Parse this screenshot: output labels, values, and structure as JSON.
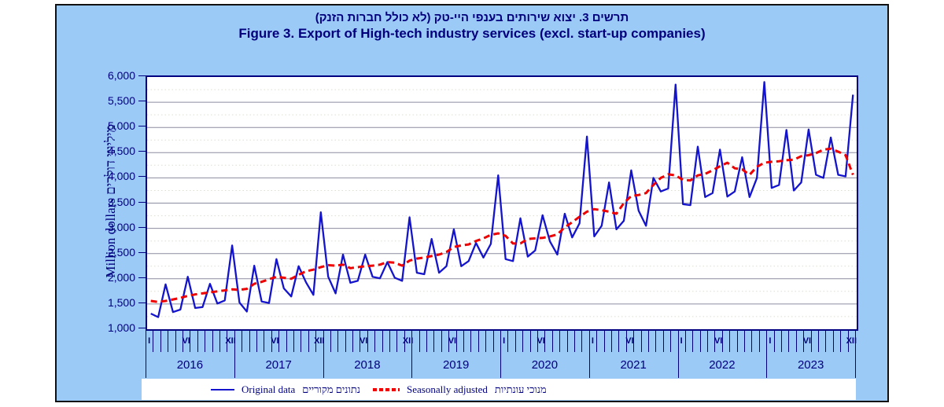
{
  "title": {
    "line1_hebrew": "תרשים 3. יצוא שירותים בענפי היי-טק (לא כולל חברות הזנק)",
    "line2_english": "Figure 3. Export of High-tech industry services (excl. start-up companies)"
  },
  "y_axis": {
    "title_english": "Million dollars",
    "title_hebrew": "מיליוני דולרים",
    "tick_labels": [
      "6,000",
      "5,500",
      "5,000",
      "4,500",
      "4,000",
      "3,500",
      "3,000",
      "2,500",
      "2,000",
      "1,500",
      "1,000"
    ]
  },
  "x_axis": {
    "year_labels": [
      "2016",
      "2017",
      "2018",
      "2019",
      "2020",
      "2021",
      "2022",
      "2023"
    ],
    "month_tick_labels": [
      {
        "label": "I",
        "month_index": 0
      },
      {
        "label": "VI",
        "month_index": 5
      },
      {
        "label": "XII",
        "month_index": 11
      },
      {
        "label": "VI",
        "month_index": 17
      },
      {
        "label": "XII",
        "month_index": 23
      },
      {
        "label": "VI",
        "month_index": 29
      },
      {
        "label": "XII",
        "month_index": 35
      },
      {
        "label": "VI",
        "month_index": 41
      },
      {
        "label": "I",
        "month_index": 48
      },
      {
        "label": "VI",
        "month_index": 53
      },
      {
        "label": "I",
        "month_index": 60
      },
      {
        "label": "VI",
        "month_index": 65
      },
      {
        "label": "I",
        "month_index": 72
      },
      {
        "label": "VI",
        "month_index": 77
      },
      {
        "label": "I",
        "month_index": 84
      },
      {
        "label": "VI",
        "month_index": 89
      },
      {
        "label": "XII",
        "month_index": 95
      }
    ]
  },
  "legend": {
    "original_label": "Original data",
    "original_label_hebrew": "נתונים מקוריים",
    "seasonal_label": "Seasonally adjusted",
    "seasonal_label_hebrew": "מנוכי עונתיות"
  },
  "colors": {
    "panel_blue": "#9CCAF7",
    "navy_text": "#00007D",
    "original_line": "#1414CC",
    "seasonal_line": "#EE0000",
    "gridline": "#8C8CA0",
    "plot_border": "#000080"
  },
  "chart_data": {
    "type": "line",
    "title": "Figure 3. Export of High-tech industry services (excl. start-up companies)",
    "ylabel": "Million dollars",
    "ylim": [
      1000,
      6000
    ],
    "y_major_step": 500,
    "grid": true,
    "legend_position": "bottom",
    "x_unit": "month",
    "x_start": "2016-01",
    "x_end": "2023-12",
    "years": [
      2016,
      2017,
      2018,
      2019,
      2020,
      2021,
      2022,
      2023
    ],
    "series": [
      {
        "name": "Original data",
        "color": "#1414CC",
        "style": "solid",
        "values_by_year": {
          "2016": [
            1310,
            1240,
            1890,
            1340,
            1390,
            2040,
            1420,
            1440,
            1900,
            1510,
            1570,
            2660
          ],
          "2017": [
            1530,
            1350,
            2260,
            1550,
            1520,
            2390,
            1810,
            1650,
            2250,
            1930,
            1680,
            3320
          ],
          "2018": [
            2040,
            1710,
            2480,
            1920,
            1960,
            2480,
            2040,
            2010,
            2330,
            2020,
            1960,
            3220
          ],
          "2019": [
            2120,
            2090,
            2790,
            2120,
            2250,
            2980,
            2250,
            2350,
            2710,
            2420,
            2690,
            4050
          ],
          "2020": [
            2390,
            2350,
            3200,
            2440,
            2560,
            3260,
            2740,
            2480,
            3290,
            2820,
            3100,
            4820
          ],
          "2021": [
            2840,
            3050,
            3910,
            2980,
            3150,
            4150,
            3350,
            3050,
            4000,
            3730,
            3790,
            5850
          ],
          "2022": [
            3480,
            3460,
            4620,
            3620,
            3700,
            4560,
            3630,
            3730,
            4410,
            3620,
            4000,
            5900
          ],
          "2023": [
            3800,
            3860,
            4950,
            3750,
            3910,
            4960,
            4060,
            4000,
            4800,
            4060,
            4030,
            5650
          ]
        }
      },
      {
        "name": "Seasonally adjusted",
        "color": "#EE0000",
        "style": "dashed",
        "values_by_year": {
          "2016": [
            1560,
            1540,
            1560,
            1590,
            1620,
            1660,
            1690,
            1710,
            1730,
            1750,
            1770,
            1790
          ],
          "2017": [
            1780,
            1800,
            1900,
            1940,
            1990,
            2040,
            2020,
            2000,
            2080,
            2150,
            2180,
            2230
          ],
          "2018": [
            2270,
            2260,
            2280,
            2210,
            2230,
            2250,
            2260,
            2280,
            2330,
            2320,
            2260,
            2360
          ],
          "2019": [
            2400,
            2420,
            2450,
            2480,
            2530,
            2630,
            2660,
            2680,
            2750,
            2800,
            2870,
            2900
          ],
          "2020": [
            2850,
            2700,
            2700,
            2790,
            2800,
            2810,
            2840,
            2880,
            3020,
            3120,
            3230,
            3330
          ],
          "2021": [
            3380,
            3360,
            3330,
            3290,
            3500,
            3640,
            3660,
            3700,
            3860,
            4000,
            4070,
            4050
          ],
          "2022": [
            3960,
            3950,
            4050,
            4080,
            4150,
            4230,
            4300,
            4190,
            4170,
            4060,
            4220,
            4300
          ],
          "2023": [
            4320,
            4330,
            4350,
            4360,
            4430,
            4450,
            4490,
            4560,
            4580,
            4520,
            4450,
            4060
          ]
        }
      }
    ]
  }
}
